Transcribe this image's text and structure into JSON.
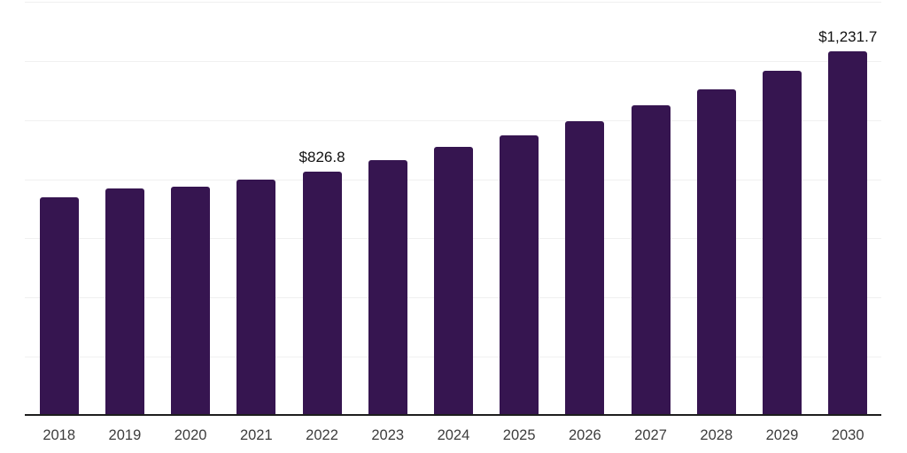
{
  "chart_data": {
    "type": "bar",
    "title": "",
    "xlabel": "",
    "ylabel": "",
    "categories": [
      "2018",
      "2019",
      "2020",
      "2021",
      "2022",
      "2023",
      "2024",
      "2025",
      "2026",
      "2027",
      "2028",
      "2029",
      "2030"
    ],
    "values": [
      740,
      770,
      776,
      800,
      826.8,
      865,
      910,
      947,
      997,
      1049,
      1105,
      1167,
      1231.7
    ],
    "value_labels": [
      {
        "index": 4,
        "category": "2022",
        "text": "$826.8"
      },
      {
        "index": 12,
        "category": "2030",
        "text": "$1,231.7"
      }
    ],
    "ylim": [
      0,
      1400
    ],
    "gridline_step": 200,
    "grid": "horizontal",
    "y_tick_labels_shown": false,
    "legend": "none"
  },
  "colors": {
    "background": "#ffffff",
    "bar": "#361550",
    "gridline": "#f0f0f0",
    "axis_line": "#1d1d1d",
    "tick_label": "#3d3d3d",
    "value_label": "#111111"
  }
}
